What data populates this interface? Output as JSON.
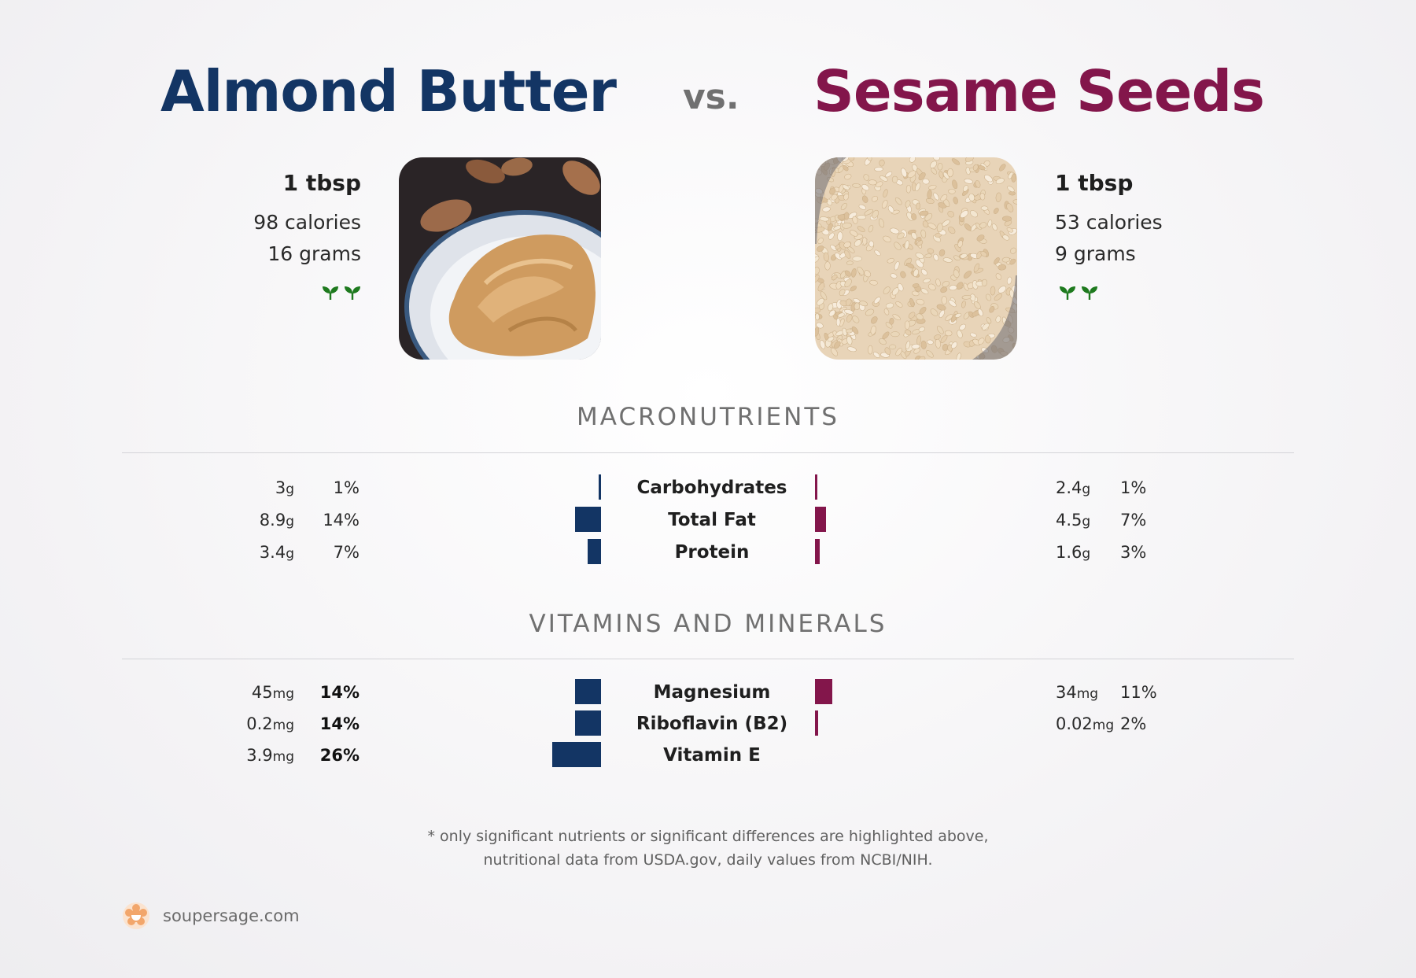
{
  "header": {
    "left_title": "Almond Butter",
    "vs": "vs.",
    "right_title": "Sesame Seeds"
  },
  "colors": {
    "left": "#133564",
    "right": "#83164b",
    "sprout": "#1e7a1e"
  },
  "left_food": {
    "serving": "1 tbsp",
    "calories": "98 calories",
    "grams": "16 grams",
    "icons": [
      "sprout-icon",
      "sprout-icon"
    ]
  },
  "right_food": {
    "serving": "1 tbsp",
    "calories": "53 calories",
    "grams": "9 grams",
    "icons": [
      "sprout-icon",
      "sprout-icon"
    ]
  },
  "sections": {
    "macros_title": "MACRONUTRIENTS",
    "vitamins_title": "VITAMINS AND MINERALS"
  },
  "macros": [
    {
      "name": "Carbohydrates",
      "left_value": "3",
      "left_unit": "g",
      "left_pct": "1%",
      "left_dv": 1,
      "right_value": "2.4",
      "right_unit": "g",
      "right_pct": "1%",
      "right_dv": 1
    },
    {
      "name": "Total Fat",
      "left_value": "8.9",
      "left_unit": "g",
      "left_pct": "14%",
      "left_dv": 14,
      "right_value": "4.5",
      "right_unit": "g",
      "right_pct": "7%",
      "right_dv": 7
    },
    {
      "name": "Protein",
      "left_value": "3.4",
      "left_unit": "g",
      "left_pct": "7%",
      "left_dv": 7,
      "right_value": "1.6",
      "right_unit": "g",
      "right_pct": "3%",
      "right_dv": 3
    }
  ],
  "vitamins": [
    {
      "name": "Magnesium",
      "left_value": "45",
      "left_unit": "mg",
      "left_pct": "14%",
      "left_dv": 14,
      "left_bold": true,
      "right_value": "34",
      "right_unit": "mg",
      "right_pct": "11%",
      "right_dv": 11
    },
    {
      "name": "Riboflavin (B2)",
      "left_value": "0.2",
      "left_unit": "mg",
      "left_pct": "14%",
      "left_dv": 14,
      "left_bold": true,
      "right_value": "0.02",
      "right_unit": "mg",
      "right_pct": "2%",
      "right_dv": 2
    },
    {
      "name": "Vitamin E",
      "left_value": "3.9",
      "left_unit": "mg",
      "left_pct": "26%",
      "left_dv": 26,
      "left_bold": true,
      "right_value": "",
      "right_unit": "",
      "right_pct": "",
      "right_dv": 0
    }
  ],
  "footnote": {
    "line1": "* only significant nutrients or significant differences are highlighted above,",
    "line2": "nutritional data from USDA.gov, daily values from NCBI/NIH."
  },
  "brand": {
    "text": "soupersage.com",
    "icon": "soupersage-logo-icon"
  }
}
